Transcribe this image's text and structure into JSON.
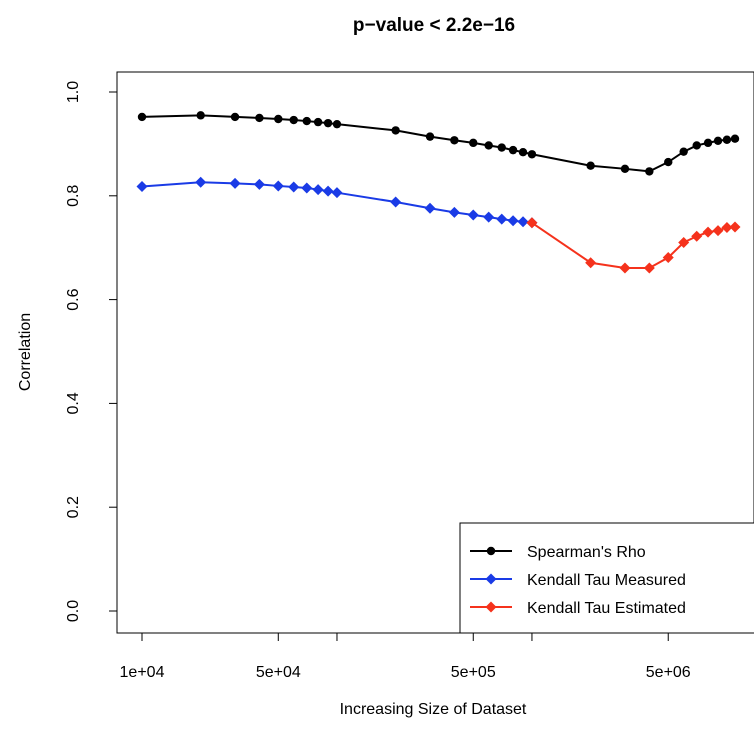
{
  "chart_data": {
    "type": "line",
    "title": "p−value < 2.2e−16",
    "xlabel": "Increasing Size of Dataset",
    "ylabel": "Correlation",
    "x_scale": "log",
    "xlim": [
      8000,
      9000000
    ],
    "ylim": [
      -0.03,
      1.03
    ],
    "x_ticks": [
      {
        "value": 10000,
        "label": "1e+04"
      },
      {
        "value": 50000,
        "label": "5e+04"
      },
      {
        "value": 500000,
        "label": "5e+05"
      },
      {
        "value": 5000000,
        "label": "5e+06"
      }
    ],
    "x_minor_ticks": [
      100000,
      1000000
    ],
    "y_ticks": [
      {
        "value": 0.0,
        "label": "0.0"
      },
      {
        "value": 0.2,
        "label": "0.2"
      },
      {
        "value": 0.4,
        "label": "0.4"
      },
      {
        "value": 0.6,
        "label": "0.6"
      },
      {
        "value": 0.8,
        "label": "0.8"
      },
      {
        "value": 1.0,
        "label": "1.0"
      }
    ],
    "grid": false,
    "legend_position": "bottom-right",
    "series": [
      {
        "name": "Spearman's Rho",
        "color": "#000000",
        "marker": "circle",
        "points": [
          [
            10000,
            0.952
          ],
          [
            20000,
            0.955
          ],
          [
            30000,
            0.952
          ],
          [
            40000,
            0.95
          ],
          [
            50000,
            0.948
          ],
          [
            60000,
            0.946
          ],
          [
            70000,
            0.944
          ],
          [
            80000,
            0.942
          ],
          [
            90000,
            0.94
          ],
          [
            100000,
            0.938
          ],
          [
            200000,
            0.926
          ],
          [
            300000,
            0.914
          ],
          [
            400000,
            0.907
          ],
          [
            500000,
            0.902
          ],
          [
            600000,
            0.897
          ],
          [
            700000,
            0.893
          ],
          [
            800000,
            0.888
          ],
          [
            900000,
            0.884
          ],
          [
            1000000,
            0.88
          ],
          [
            2000000,
            0.858
          ],
          [
            3000000,
            0.852
          ],
          [
            4000000,
            0.847
          ],
          [
            5000000,
            0.865
          ],
          [
            6000000,
            0.885
          ],
          [
            7000000,
            0.897
          ],
          [
            8000000,
            0.902
          ],
          [
            9000000,
            0.906
          ],
          [
            10000000,
            0.908
          ],
          [
            11000000,
            0.91
          ]
        ]
      },
      {
        "name": "Kendall Tau Measured",
        "color": "#1a3be6",
        "marker": "diamond",
        "points": [
          [
            10000,
            0.818
          ],
          [
            20000,
            0.826
          ],
          [
            30000,
            0.824
          ],
          [
            40000,
            0.822
          ],
          [
            50000,
            0.819
          ],
          [
            60000,
            0.817
          ],
          [
            70000,
            0.815
          ],
          [
            80000,
            0.812
          ],
          [
            90000,
            0.809
          ],
          [
            100000,
            0.806
          ],
          [
            200000,
            0.788
          ],
          [
            300000,
            0.776
          ],
          [
            400000,
            0.768
          ],
          [
            500000,
            0.763
          ],
          [
            600000,
            0.759
          ],
          [
            700000,
            0.755
          ],
          [
            800000,
            0.752
          ],
          [
            900000,
            0.75
          ],
          [
            1000000,
            0.748
          ]
        ]
      },
      {
        "name": "Kendall Tau Estimated",
        "color": "#f5321c",
        "marker": "diamond",
        "points": [
          [
            1000000,
            0.748
          ],
          [
            2000000,
            0.671
          ],
          [
            3000000,
            0.661
          ],
          [
            4000000,
            0.661
          ],
          [
            5000000,
            0.681
          ],
          [
            6000000,
            0.71
          ],
          [
            7000000,
            0.722
          ],
          [
            8000000,
            0.73
          ],
          [
            9000000,
            0.733
          ],
          [
            10000000,
            0.739
          ],
          [
            11000000,
            0.74
          ]
        ]
      }
    ]
  }
}
